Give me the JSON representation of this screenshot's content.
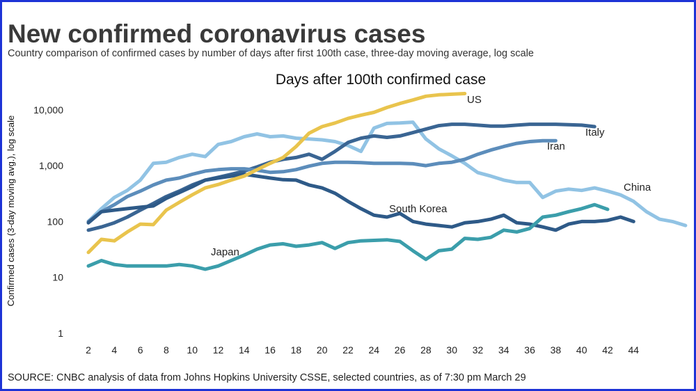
{
  "chart_data": {
    "type": "line",
    "title": "New confirmed coronavirus cases",
    "subtitle": "Country comparison of confirmed cases by number of days after first 100th case, three-day moving average, log scale",
    "chart_title": "Days after 100th confirmed case",
    "xlabel": "",
    "ylabel": "Confirmed cases (3-day moving avg.), log scale",
    "yscale": "log",
    "ylim": [
      1,
      30000
    ],
    "xlim": [
      1,
      47
    ],
    "x_ticks": [
      "2",
      "4",
      "6",
      "8",
      "10",
      "12",
      "14",
      "16",
      "18",
      "20",
      "22",
      "24",
      "26",
      "28",
      "30",
      "32",
      "34",
      "36",
      "38",
      "40",
      "42",
      "44"
    ],
    "y_ticks": [
      {
        "value": 1,
        "label": "1"
      },
      {
        "value": 10,
        "label": "10"
      },
      {
        "value": 100,
        "label": "100"
      },
      {
        "value": 1000,
        "label": "1,000"
      },
      {
        "value": 10000,
        "label": "10,000"
      }
    ],
    "source": "SOURCE: CNBC analysis of data from Johns Hopkins University CSSE, selected countries, as of 7:30 pm March 29",
    "series": [
      {
        "name": "China",
        "color": "#91c3e4",
        "start": 2,
        "values": [
          100,
          170,
          270,
          360,
          550,
          1100,
          1150,
          1400,
          1600,
          1450,
          2400,
          2700,
          3300,
          3700,
          3300,
          3400,
          3100,
          3000,
          2900,
          2700,
          2300,
          1800,
          4700,
          5700,
          5800,
          6000,
          3000,
          2000,
          1500,
          1100,
          750,
          650,
          550,
          500,
          500,
          270,
          350,
          380,
          360,
          400,
          350,
          300,
          230,
          150,
          110,
          100,
          85
        ]
      },
      {
        "name": "Italy",
        "color": "#3a6593",
        "start": 2,
        "values": [
          70,
          80,
          95,
          120,
          160,
          210,
          280,
          350,
          450,
          550,
          620,
          700,
          800,
          950,
          1150,
          1300,
          1400,
          1600,
          1300,
          1800,
          2600,
          3100,
          3400,
          3200,
          3400,
          3900,
          4500,
          5200,
          5500,
          5500,
          5300,
          5100,
          5100,
          5300,
          5500,
          5500,
          5500,
          5400,
          5300,
          5000
        ]
      },
      {
        "name": "Iran",
        "color": "#5c8dbb",
        "start": 2,
        "values": [
          100,
          150,
          200,
          280,
          350,
          450,
          550,
          600,
          700,
          800,
          850,
          880,
          880,
          830,
          760,
          780,
          850,
          980,
          1100,
          1150,
          1150,
          1130,
          1100,
          1100,
          1100,
          1080,
          1000,
          1100,
          1150,
          1300,
          1600,
          1900,
          2200,
          2500,
          2700,
          2800,
          2800
        ]
      },
      {
        "name": "South Korea",
        "color": "#2e5a88",
        "start": 2,
        "values": [
          95,
          150,
          160,
          170,
          180,
          190,
          260,
          330,
          420,
          550,
          600,
          650,
          700,
          650,
          600,
          560,
          550,
          450,
          400,
          320,
          230,
          170,
          130,
          120,
          140,
          100,
          90,
          85,
          80,
          95,
          100,
          110,
          130,
          95,
          90,
          80,
          70,
          90,
          100,
          100,
          105,
          120,
          100
        ]
      },
      {
        "name": "US",
        "color": "#e9c44d",
        "start": 2,
        "values": [
          28,
          48,
          45,
          65,
          90,
          88,
          160,
          220,
          300,
          400,
          460,
          550,
          650,
          850,
          1100,
          1400,
          2200,
          3800,
          5000,
          5800,
          7000,
          8000,
          9000,
          11000,
          13000,
          15000,
          17500,
          18500,
          19000,
          19500
        ]
      },
      {
        "name": "Japan",
        "color": "#3b9eab",
        "start": 2,
        "values": [
          16,
          20,
          17,
          16,
          16,
          16,
          16,
          17,
          16,
          14,
          16,
          20,
          25,
          32,
          38,
          40,
          36,
          38,
          42,
          33,
          42,
          45,
          46,
          47,
          44,
          30,
          21,
          30,
          32,
          50,
          48,
          52,
          70,
          65,
          75,
          120,
          130,
          150,
          170,
          200,
          165
        ]
      }
    ],
    "annotations": [
      {
        "series": "China",
        "text": "China"
      },
      {
        "series": "Italy",
        "text": "Italy"
      },
      {
        "series": "Iran",
        "text": "Iran"
      },
      {
        "series": "South Korea",
        "text": "South Korea"
      },
      {
        "series": "US",
        "text": "US"
      },
      {
        "series": "Japan",
        "text": "Japan"
      }
    ]
  }
}
